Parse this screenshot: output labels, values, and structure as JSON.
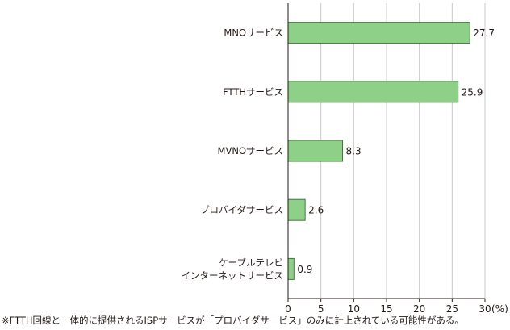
{
  "chart_data": {
    "type": "bar",
    "orientation": "horizontal",
    "categories": [
      [
        "MNOサービス"
      ],
      [
        "FTTHサービス"
      ],
      [
        "MVNOサービス"
      ],
      [
        "プロバイダサービス"
      ],
      [
        "ケーブルテレビ",
        "インターネットサービス"
      ]
    ],
    "values": [
      27.7,
      25.9,
      8.3,
      2.6,
      0.9
    ],
    "value_labels": [
      "27.7",
      "25.9",
      "8.3",
      "2.6",
      "0.9"
    ],
    "xlim": [
      0,
      30
    ],
    "xticks": [
      "0",
      "5",
      "10",
      "15",
      "20",
      "25",
      "30"
    ],
    "xunit": "(%)",
    "grid": true,
    "colors": {
      "bar_fill": "#8fd088",
      "bar_stroke": "#3f7a3a",
      "grid": "#c8c8c8",
      "axis": "#231815"
    }
  },
  "footnote": "※FTTH回線と一体的に提供されるISPサービスが「プロバイダサービス」のみに計上されている可能性がある。"
}
